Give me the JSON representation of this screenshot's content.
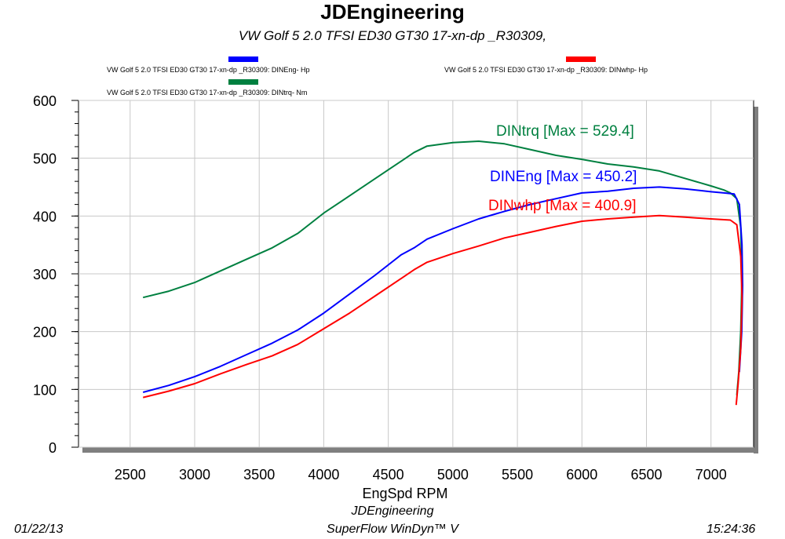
{
  "header": {
    "title": "JDEngineering",
    "subtitle": "VW Golf 5 2.0 TFSI ED30    GT30    17-xn-dp    _R30309,"
  },
  "legend": [
    {
      "label": "VW Golf 5 2.0 TFSI ED30    GT30   17-xn-dp   _R30309: DINEng- Hp",
      "color": "#0000ff"
    },
    {
      "label": "VW Golf 5 2.0 TFSI ED30    GT30   17-xn-dp   _R30309: DINtrq- Nm",
      "color": "#008040"
    },
    {
      "label": "VW Golf 5 2.0 TFSI ED30    GT30   17-xn-dp   _R30309: DINwhp-  Hp",
      "color": "#ff0000"
    }
  ],
  "footer": {
    "date": "01/22/13",
    "company": "JDEngineering",
    "software": "SuperFlow WinDyn™ V",
    "time": "15:24:36"
  },
  "chart_data": {
    "type": "line",
    "xlabel": "EngSpd  RPM",
    "ylabel": "",
    "xlim": [
      2100,
      7330
    ],
    "ylim": [
      0,
      600
    ],
    "x_ticks": [
      2500,
      3000,
      3500,
      4000,
      4500,
      5000,
      5500,
      6000,
      6500,
      7000
    ],
    "y_ticks": [
      0,
      100,
      200,
      300,
      400,
      500,
      600
    ],
    "grid": true,
    "series": [
      {
        "name": "DINtrq",
        "annotation": "DINtrq [Max = 529.4]",
        "max": 529.4,
        "color": "#008040",
        "points": [
          [
            2600,
            259
          ],
          [
            2800,
            270
          ],
          [
            3000,
            285
          ],
          [
            3200,
            305
          ],
          [
            3400,
            325
          ],
          [
            3600,
            345
          ],
          [
            3800,
            370
          ],
          [
            4000,
            405
          ],
          [
            4200,
            435
          ],
          [
            4400,
            465
          ],
          [
            4500,
            480
          ],
          [
            4600,
            495
          ],
          [
            4700,
            510
          ],
          [
            4800,
            521
          ],
          [
            5000,
            527
          ],
          [
            5200,
            529.4
          ],
          [
            5400,
            525
          ],
          [
            5600,
            515
          ],
          [
            5800,
            505
          ],
          [
            6000,
            498
          ],
          [
            6200,
            490
          ],
          [
            6400,
            485
          ],
          [
            6600,
            478
          ],
          [
            6800,
            465
          ],
          [
            7000,
            452
          ],
          [
            7100,
            445
          ],
          [
            7150,
            440
          ],
          [
            7200,
            430
          ],
          [
            7230,
            380
          ],
          [
            7240,
            300
          ],
          [
            7230,
            200
          ],
          [
            7215,
            130
          ],
          [
            7200,
            90
          ]
        ]
      },
      {
        "name": "DINEng",
        "annotation": "DINEng [Max = 450.2]",
        "max": 450.2,
        "color": "#0000ff",
        "points": [
          [
            2600,
            95
          ],
          [
            2800,
            107
          ],
          [
            3000,
            122
          ],
          [
            3200,
            140
          ],
          [
            3400,
            160
          ],
          [
            3600,
            180
          ],
          [
            3800,
            203
          ],
          [
            4000,
            232
          ],
          [
            4200,
            265
          ],
          [
            4400,
            298
          ],
          [
            4600,
            333
          ],
          [
            4700,
            345
          ],
          [
            4800,
            360
          ],
          [
            5000,
            378
          ],
          [
            5200,
            395
          ],
          [
            5400,
            408
          ],
          [
            5600,
            420
          ],
          [
            5800,
            430
          ],
          [
            6000,
            440
          ],
          [
            6200,
            443
          ],
          [
            6400,
            448
          ],
          [
            6600,
            450.2
          ],
          [
            6800,
            447
          ],
          [
            7000,
            442
          ],
          [
            7100,
            440
          ],
          [
            7180,
            438
          ],
          [
            7220,
            420
          ],
          [
            7240,
            350
          ],
          [
            7245,
            280
          ],
          [
            7238,
            200
          ],
          [
            7220,
            130
          ]
        ]
      },
      {
        "name": "DINwhp",
        "annotation": "DINwhp [Max = 400.9]",
        "max": 400.9,
        "color": "#ff0000",
        "points": [
          [
            2600,
            86
          ],
          [
            2800,
            97
          ],
          [
            3000,
            110
          ],
          [
            3200,
            127
          ],
          [
            3400,
            143
          ],
          [
            3600,
            158
          ],
          [
            3800,
            178
          ],
          [
            4000,
            205
          ],
          [
            4200,
            232
          ],
          [
            4400,
            262
          ],
          [
            4600,
            292
          ],
          [
            4700,
            307
          ],
          [
            4800,
            320
          ],
          [
            5000,
            335
          ],
          [
            5200,
            348
          ],
          [
            5400,
            362
          ],
          [
            5600,
            372
          ],
          [
            5800,
            382
          ],
          [
            6000,
            391
          ],
          [
            6200,
            395
          ],
          [
            6400,
            398
          ],
          [
            6600,
            400.9
          ],
          [
            6800,
            398
          ],
          [
            7000,
            395
          ],
          [
            7150,
            393
          ],
          [
            7200,
            385
          ],
          [
            7230,
            330
          ],
          [
            7240,
            260
          ],
          [
            7230,
            170
          ],
          [
            7210,
            110
          ],
          [
            7195,
            73
          ]
        ]
      }
    ]
  }
}
